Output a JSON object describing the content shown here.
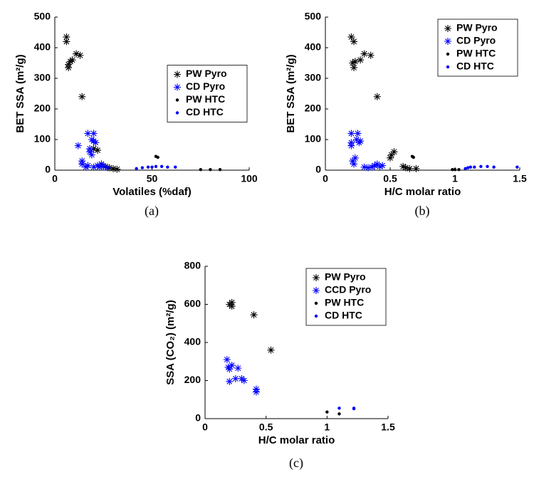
{
  "chart_data": [
    {
      "type": "scatter",
      "caption": "(a)",
      "x_label": "Volatiles (%daf)",
      "y_label": "BET SSA (m²/g)",
      "xlim": [
        0,
        100
      ],
      "ylim": [
        0,
        500
      ],
      "xticks": [
        0,
        50,
        100
      ],
      "yticks": [
        0,
        100,
        200,
        300,
        400,
        500
      ],
      "legend": "center right",
      "series": [
        {
          "name": "PW Pyro",
          "color": "#000000",
          "marker": "asterisk",
          "x": [
            6,
            6,
            7,
            7,
            8,
            9,
            11,
            13,
            14,
            20,
            22,
            24,
            26,
            28,
            30,
            32
          ],
          "values": [
            435,
            420,
            345,
            335,
            355,
            360,
            380,
            375,
            240,
            70,
            65,
            20,
            12,
            8,
            5,
            3
          ]
        },
        {
          "name": "CD Pyro",
          "color": "#0000ff",
          "marker": "asterisk",
          "x": [
            12,
            14,
            14,
            16,
            17,
            18,
            18,
            19,
            19,
            20,
            20,
            21,
            22,
            17,
            20,
            23,
            24,
            25,
            27
          ],
          "values": [
            80,
            30,
            20,
            10,
            120,
            60,
            70,
            50,
            100,
            120,
            95,
            90,
            15,
            15,
            10,
            10,
            20,
            12,
            8
          ]
        },
        {
          "name": "PW HTC",
          "color": "#000000",
          "marker": "dot",
          "x": [
            52,
            53,
            75,
            80,
            85
          ],
          "values": [
            45,
            42,
            2,
            2,
            2
          ]
        },
        {
          "name": "CD HTC",
          "color": "#0000ff",
          "marker": "dot",
          "x": [
            42,
            45,
            48,
            50,
            52,
            55,
            58,
            62
          ],
          "values": [
            5,
            8,
            10,
            10,
            12,
            12,
            10,
            10
          ]
        }
      ]
    },
    {
      "type": "scatter",
      "caption": "(b)",
      "x_label": "H/C molar ratio",
      "y_label": "BET SSA (m²/g)",
      "xlim": [
        0,
        1.5
      ],
      "ylim": [
        0,
        500
      ],
      "xticks": [
        0,
        0.5,
        1,
        1.5
      ],
      "yticks": [
        0,
        100,
        200,
        300,
        400,
        500
      ],
      "legend": "upper right",
      "series": [
        {
          "name": "PW Pyro",
          "color": "#000000",
          "marker": "asterisk",
          "x": [
            0.2,
            0.22,
            0.21,
            0.22,
            0.23,
            0.27,
            0.3,
            0.35,
            0.4,
            0.5,
            0.51,
            0.53,
            0.6,
            0.62,
            0.65,
            0.7
          ],
          "values": [
            435,
            420,
            350,
            335,
            355,
            360,
            380,
            375,
            240,
            40,
            50,
            60,
            12,
            8,
            5,
            5
          ]
        },
        {
          "name": "CD Pyro",
          "color": "#0000ff",
          "marker": "asterisk",
          "x": [
            0.2,
            0.2,
            0.2,
            0.21,
            0.22,
            0.23,
            0.24,
            0.25,
            0.26,
            0.27,
            0.3,
            0.33,
            0.36,
            0.38,
            0.4,
            0.42,
            0.44
          ],
          "values": [
            120,
            90,
            80,
            30,
            20,
            40,
            100,
            120,
            90,
            95,
            10,
            8,
            10,
            15,
            20,
            12,
            15
          ]
        },
        {
          "name": "PW HTC",
          "color": "#000000",
          "marker": "dot",
          "x": [
            0.67,
            0.68,
            0.98,
            1.0,
            1.03
          ],
          "values": [
            45,
            42,
            2,
            2,
            2
          ]
        },
        {
          "name": "CD HTC",
          "color": "#0000ff",
          "marker": "dot",
          "x": [
            1.08,
            1.1,
            1.12,
            1.15,
            1.2,
            1.25,
            1.3,
            1.48
          ],
          "values": [
            5,
            8,
            10,
            10,
            12,
            12,
            10,
            10
          ]
        }
      ]
    },
    {
      "type": "scatter",
      "caption": "(c)",
      "x_label": "H/C molar ratio",
      "y_label": "SSA (CO₂) (m²/g)",
      "xlim": [
        0,
        1.5
      ],
      "ylim": [
        0,
        800
      ],
      "xticks": [
        0,
        0.5,
        1,
        1.5
      ],
      "yticks": [
        0,
        200,
        400,
        600,
        800
      ],
      "legend": "upper right",
      "series": [
        {
          "name": "PW Pyro",
          "color": "#000000",
          "marker": "asterisk",
          "x": [
            0.2,
            0.22,
            0.22,
            0.4,
            0.54
          ],
          "values": [
            600,
            590,
            610,
            545,
            360
          ]
        },
        {
          "name": "CCD Pyro",
          "color": "#0000ff",
          "marker": "asterisk",
          "x": [
            0.18,
            0.19,
            0.2,
            0.2,
            0.22,
            0.25,
            0.27,
            0.3,
            0.32,
            0.42,
            0.42
          ],
          "values": [
            310,
            270,
            260,
            195,
            280,
            210,
            265,
            210,
            200,
            155,
            140
          ]
        },
        {
          "name": "PW HTC",
          "color": "#000000",
          "marker": "dot",
          "x": [
            1.0,
            1.1
          ],
          "values": [
            35,
            25
          ]
        },
        {
          "name": "CD HTC",
          "color": "#0000ff",
          "marker": "dot",
          "x": [
            1.1,
            1.22,
            1.22
          ],
          "values": [
            55,
            55,
            52
          ]
        }
      ]
    }
  ]
}
